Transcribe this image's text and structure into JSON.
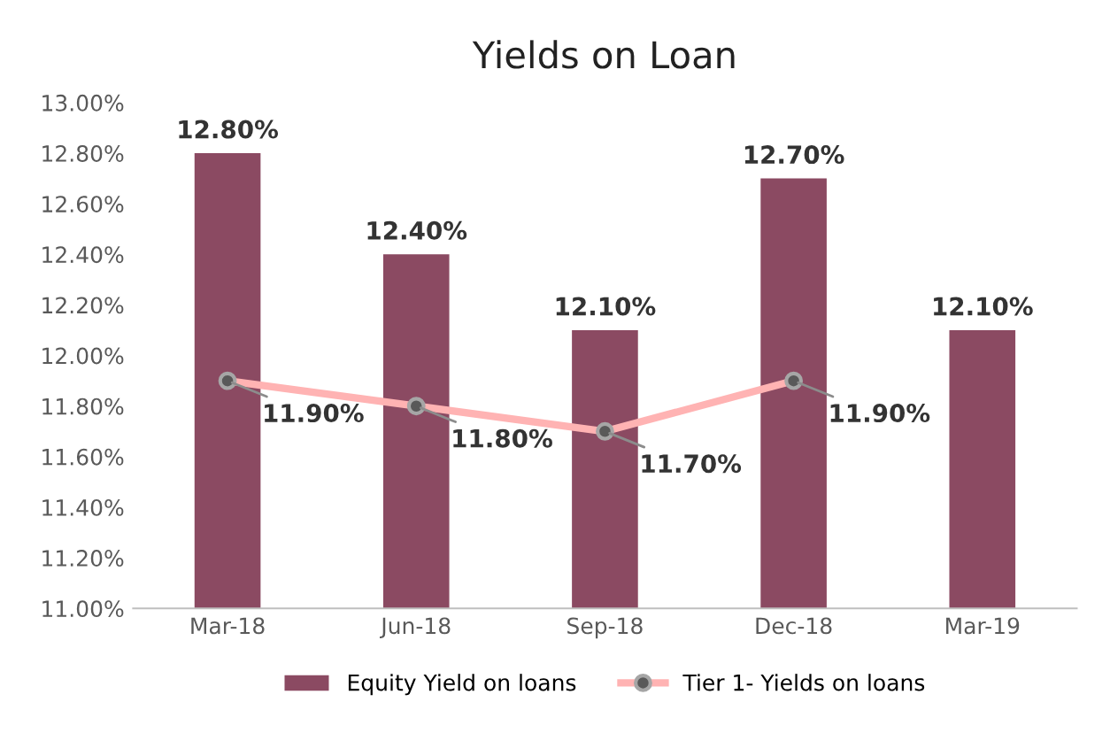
{
  "chart_data": {
    "type": "bar",
    "title": "Yields on Loan",
    "categories": [
      "Mar-18",
      "Jun-18",
      "Sep-18",
      "Dec-18",
      "Mar-19"
    ],
    "series": [
      {
        "name": "Equity Yield on loans",
        "color": "#8b4a62",
        "values": [
          12.8,
          12.4,
          12.1,
          12.7,
          12.1
        ],
        "value_labels": [
          "12.80%",
          "12.40%",
          "12.10%",
          "12.70%",
          "12.10%"
        ]
      },
      {
        "name": "Tier 1- Yields on loans",
        "type": "line",
        "color": "#ffb3b3",
        "marker": "circle",
        "values": [
          11.9,
          11.8,
          11.7,
          11.9,
          null
        ],
        "value_labels": [
          "11.90%",
          "11.80%",
          "11.70%",
          "11.90%",
          null
        ]
      }
    ],
    "ylim": [
      11,
      13
    ],
    "yticks": [
      {
        "value": 11,
        "label": "11.00%"
      },
      {
        "value": 11.2,
        "label": "11.20%"
      },
      {
        "value": 11.4,
        "label": "11.40%"
      },
      {
        "value": 11.6,
        "label": "11.60%"
      },
      {
        "value": 11.8,
        "label": "11.80%"
      },
      {
        "value": 12,
        "label": "12.00%"
      },
      {
        "value": 12.2,
        "label": "12.20%"
      },
      {
        "value": 12.4,
        "label": "12.40%"
      },
      {
        "value": 12.6,
        "label": "12.60%"
      },
      {
        "value": 12.8,
        "label": "12.80%"
      },
      {
        "value": 13,
        "label": "13.00%"
      }
    ],
    "grid": false,
    "legend": "bottom"
  }
}
